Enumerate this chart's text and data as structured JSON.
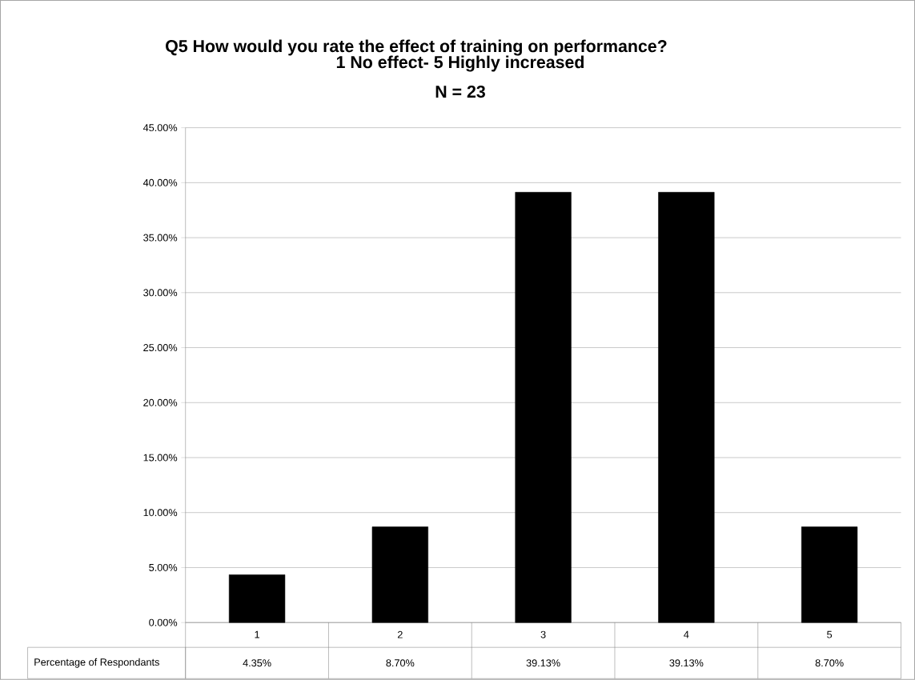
{
  "chart_data": {
    "type": "bar",
    "title": "Q5 How would you rate the effect of training on performance?",
    "subtitle": "1 No effect- 5 Highly increased",
    "annotations": [
      "N  = 23"
    ],
    "categories": [
      "1",
      "2",
      "3",
      "4",
      "5"
    ],
    "series": [
      {
        "name": "Percentage of Respondants",
        "color": "#000000",
        "values": [
          4.35,
          8.7,
          39.13,
          39.13,
          8.7
        ],
        "value_labels": [
          "4.35%",
          "8.70%",
          "39.13%",
          "39.13%",
          "8.70%"
        ]
      }
    ],
    "ylim": [
      0,
      45
    ],
    "yticks": [
      {
        "value": 0,
        "label": "0.00%"
      },
      {
        "value": 5,
        "label": "5.00%"
      },
      {
        "value": 10,
        "label": "10.00%"
      },
      {
        "value": 15,
        "label": "15.00%"
      },
      {
        "value": 20,
        "label": "20.00%"
      },
      {
        "value": 25,
        "label": "25.00%"
      },
      {
        "value": 30,
        "label": "30.00%"
      },
      {
        "value": 35,
        "label": "35.00%"
      },
      {
        "value": 40,
        "label": "40.00%"
      },
      {
        "value": 45,
        "label": "45.00%"
      }
    ],
    "grid": "y"
  }
}
